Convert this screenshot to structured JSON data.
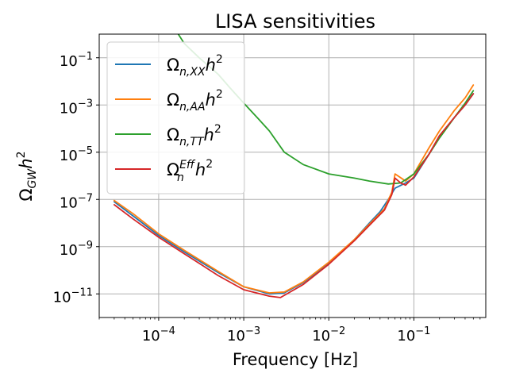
{
  "chart_data": {
    "type": "line",
    "title": "LISA sensitivities",
    "xlabel": "Frequency [Hz]",
    "ylabel": "Ω_GW h²",
    "xscale": "log",
    "yscale": "log",
    "xlim": [
      2e-05,
      0.7
    ],
    "ylim": [
      1e-12,
      1
    ],
    "grid": true,
    "legend_position": "upper-left",
    "x_ticks": [
      {
        "value": 0.0001,
        "mantissa": "10",
        "exponent": "−4"
      },
      {
        "value": 0.001,
        "mantissa": "10",
        "exponent": "−3"
      },
      {
        "value": 0.01,
        "mantissa": "10",
        "exponent": "−2"
      },
      {
        "value": 0.1,
        "mantissa": "10",
        "exponent": "−1"
      }
    ],
    "y_ticks": [
      {
        "value": 1e-11,
        "mantissa": "10",
        "exponent": "−11"
      },
      {
        "value": 1e-09,
        "mantissa": "10",
        "exponent": "−9"
      },
      {
        "value": 1e-07,
        "mantissa": "10",
        "exponent": "−7"
      },
      {
        "value": 1e-05,
        "mantissa": "10",
        "exponent": "−5"
      },
      {
        "value": 0.001,
        "mantissa": "10",
        "exponent": "−3"
      },
      {
        "value": 0.1,
        "mantissa": "10",
        "exponent": "−1"
      }
    ],
    "series": [
      {
        "name": "Ω_{n,XX} h²",
        "color": "#1f77b4",
        "x": [
          3e-05,
          5e-05,
          0.0001,
          0.0002,
          0.0005,
          0.001,
          0.002,
          0.003,
          0.005,
          0.01,
          0.02,
          0.03,
          0.04,
          0.05,
          0.06,
          0.08,
          0.1,
          0.15,
          0.2,
          0.3,
          0.4,
          0.5
        ],
        "y": [
          8e-08,
          2e-08,
          3e-09,
          6e-10,
          8e-11,
          2e-11,
          1e-11,
          1.1e-11,
          3e-11,
          2e-10,
          2e-09,
          1e-08,
          3e-08,
          1e-07,
          3e-07,
          5e-07,
          8e-07,
          8e-06,
          5e-05,
          0.0003,
          0.001,
          0.003
        ]
      },
      {
        "name": "Ω_{n,AA} h²",
        "color": "#ff7f0e",
        "x": [
          3e-05,
          5e-05,
          0.0001,
          0.0002,
          0.0005,
          0.001,
          0.002,
          0.003,
          0.005,
          0.01,
          0.02,
          0.03,
          0.045,
          0.055,
          0.06,
          0.08,
          0.1,
          0.15,
          0.2,
          0.3,
          0.4,
          0.5
        ],
        "y": [
          9e-08,
          2.5e-08,
          3.5e-09,
          7e-10,
          9e-11,
          2e-11,
          1.1e-11,
          1.2e-11,
          3.2e-11,
          2.2e-10,
          2e-09,
          9e-09,
          4e-08,
          2e-07,
          1.2e-06,
          6e-07,
          1.2e-06,
          1.5e-05,
          8e-05,
          0.0006,
          0.002,
          0.007
        ]
      },
      {
        "name": "Ω_{n,TT} h²",
        "color": "#2ca02c",
        "x": [
          0.00017,
          0.0002,
          0.0003,
          0.0005,
          0.0007,
          0.001,
          0.0015,
          0.002,
          0.003,
          0.005,
          0.01,
          0.02,
          0.03,
          0.05,
          0.07,
          0.1,
          0.15,
          0.2,
          0.3,
          0.4,
          0.5
        ],
        "y": [
          1,
          0.4,
          0.1,
          0.02,
          0.005,
          0.0012,
          0.00025,
          8e-05,
          1e-05,
          3e-06,
          1.2e-06,
          8e-07,
          6e-07,
          4.5e-07,
          5e-07,
          1.2e-06,
          8e-06,
          4e-05,
          0.0003,
          0.0012,
          0.004
        ]
      },
      {
        "name": "Ω_n^{Eff} h²",
        "color": "#d62728",
        "x": [
          3e-05,
          5e-05,
          0.0001,
          0.0002,
          0.0005,
          0.001,
          0.002,
          0.0027,
          0.005,
          0.01,
          0.02,
          0.03,
          0.045,
          0.055,
          0.06,
          0.07,
          0.08,
          0.1,
          0.15,
          0.2,
          0.3,
          0.4,
          0.5
        ],
        "y": [
          6e-08,
          1.5e-08,
          2.5e-09,
          5e-10,
          6e-11,
          1.5e-11,
          8e-12,
          7e-12,
          2.5e-11,
          1.8e-10,
          1.8e-09,
          8e-09,
          3.5e-08,
          1.6e-07,
          8e-07,
          5e-07,
          4e-07,
          9e-07,
          8e-06,
          5e-05,
          0.0003,
          0.001,
          0.003
        ]
      }
    ]
  }
}
